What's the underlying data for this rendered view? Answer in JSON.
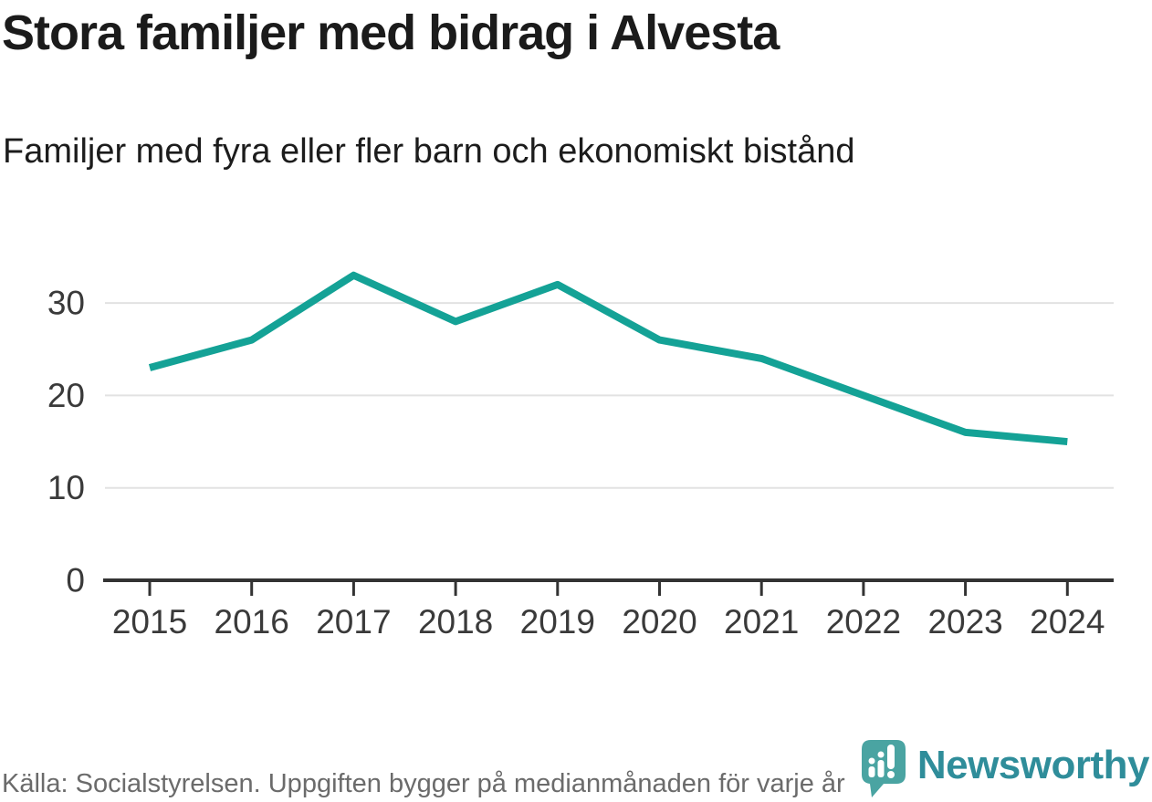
{
  "chart_data": {
    "type": "line",
    "title": "Stora familjer med bidrag i Alvesta",
    "subtitle": "Familjer med fyra eller fler barn och ekonomiskt bistånd",
    "source": "Källa: Socialstyrelsen. Uppgiften bygger på medianmånaden för varje år",
    "categories": [
      "2015",
      "2016",
      "2017",
      "2018",
      "2019",
      "2020",
      "2021",
      "2022",
      "2023",
      "2024"
    ],
    "values": [
      23,
      26,
      33,
      28,
      32,
      26,
      24,
      20,
      16,
      15
    ],
    "series": [
      {
        "name": "Familjer med fyra eller fler barn och ekonomiskt bistånd",
        "values": [
          23,
          26,
          33,
          28,
          32,
          26,
          24,
          20,
          16,
          15
        ]
      }
    ],
    "xlabel": "",
    "ylabel": "",
    "ylim": [
      0,
      35
    ],
    "yticks": [
      0,
      10,
      20,
      30
    ],
    "grid": true,
    "legend": false,
    "line_color": "#14A296"
  },
  "logo": {
    "brand": "Newsworthy",
    "icon": "bar-chart-bubble-icon"
  },
  "colors": {
    "line": "#14A296",
    "grid": "#E2E2E2",
    "axis": "#333333",
    "tick_label": "#3A3A3A",
    "title_text": "#1B1B1B",
    "source_text": "#6B6B6B",
    "brand_teal": "#2F8D9A",
    "logo_fill": "#4AA4A2"
  }
}
